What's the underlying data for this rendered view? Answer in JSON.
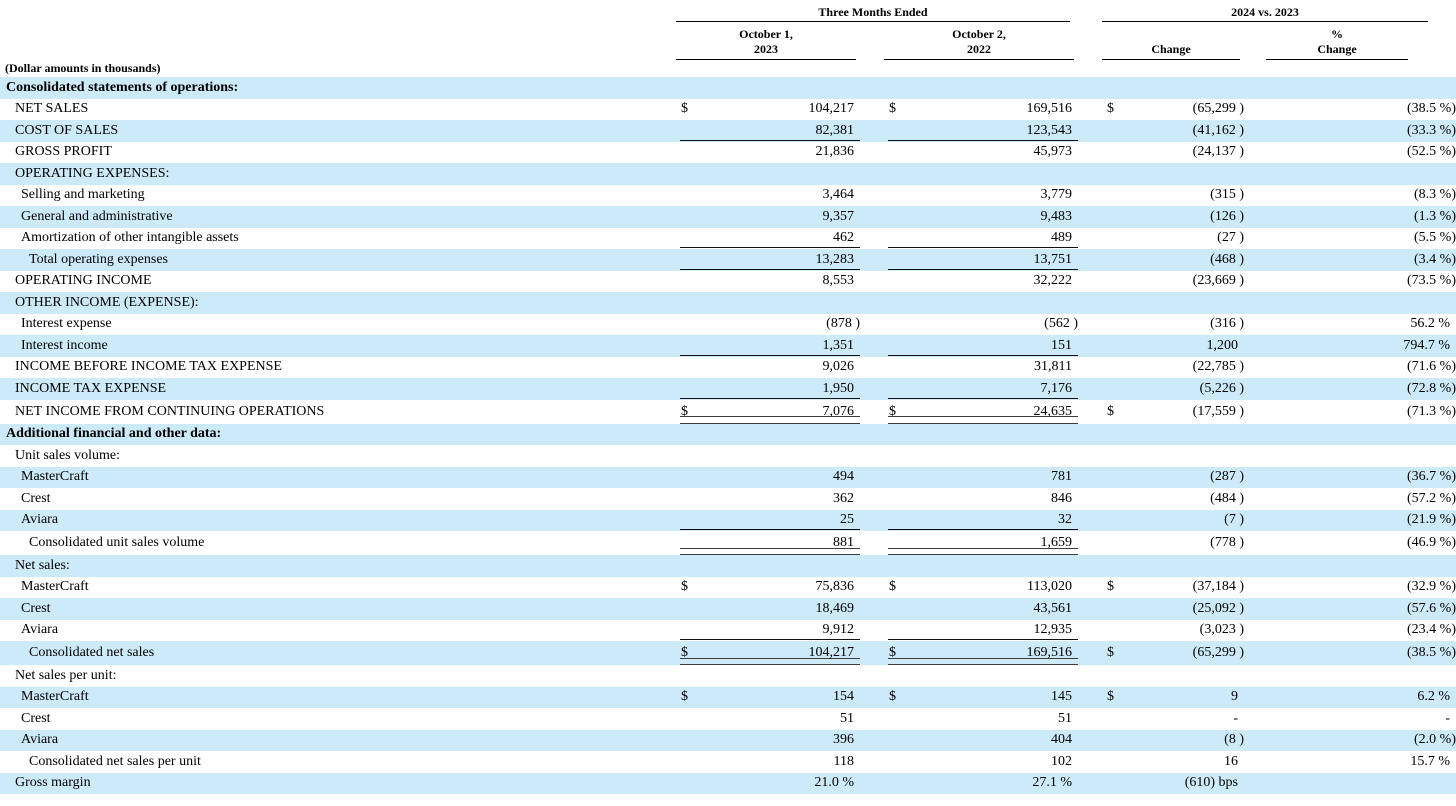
{
  "table": {
    "note": "(Dollar amounts in thousands)",
    "colors": {
      "row_highlight": "#cdeaf8",
      "rule": "#111111"
    },
    "header": {
      "group_left": "Three Months Ended",
      "group_right": "2024 vs. 2023",
      "col1_line1": "October 1,",
      "col1_line2": "2023",
      "col2_line1": "October 2,",
      "col2_line2": "2022",
      "col3_line1": "Change",
      "col4_line1": "%",
      "col4_line2": "Change"
    },
    "rows": [
      {
        "label": "Consolidated statements of operations:",
        "indent": 0,
        "bold": true,
        "cells": [
          "",
          "",
          "",
          "",
          "",
          "",
          ""
        ],
        "rule": null
      },
      {
        "label": "NET SALES",
        "indent": 1,
        "bold": false,
        "cells": [
          "$",
          "104,217",
          "$",
          "169,516",
          "$",
          "(65,299 )",
          "(38.5 %)"
        ],
        "rule": null
      },
      {
        "label": "COST OF SALES",
        "indent": 1,
        "bold": false,
        "cells": [
          "",
          "82,381",
          "",
          "123,543",
          "",
          "(41,162 )",
          "(33.3 %)"
        ],
        "rule": "single"
      },
      {
        "label": "GROSS PROFIT",
        "indent": 1,
        "bold": false,
        "cells": [
          "",
          "21,836",
          "",
          "45,973",
          "",
          "(24,137 )",
          "(52.5 %)"
        ],
        "rule": null
      },
      {
        "label": "OPERATING EXPENSES:",
        "indent": 1,
        "bold": false,
        "cells": [
          "",
          "",
          "",
          "",
          "",
          "",
          ""
        ],
        "rule": null
      },
      {
        "label": "Selling and marketing",
        "indent": 2,
        "bold": false,
        "cells": [
          "",
          "3,464",
          "",
          "3,779",
          "",
          "(315 )",
          "(8.3 %)"
        ],
        "rule": null
      },
      {
        "label": "General and administrative",
        "indent": 2,
        "bold": false,
        "cells": [
          "",
          "9,357",
          "",
          "9,483",
          "",
          "(126 )",
          "(1.3 %)"
        ],
        "rule": null
      },
      {
        "label": "Amortization of other intangible assets",
        "indent": 2,
        "bold": false,
        "cells": [
          "",
          "462",
          "",
          "489",
          "",
          "(27 )",
          "(5.5 %)"
        ],
        "rule": "single"
      },
      {
        "label": "Total operating expenses",
        "indent": 3,
        "bold": false,
        "cells": [
          "",
          "13,283",
          "",
          "13,751",
          "",
          "(468 )",
          "(3.4 %)"
        ],
        "rule": "single"
      },
      {
        "label": "OPERATING INCOME",
        "indent": 1,
        "bold": false,
        "cells": [
          "",
          "8,553",
          "",
          "32,222",
          "",
          "(23,669 )",
          "(73.5 %)"
        ],
        "rule": null
      },
      {
        "label": "OTHER INCOME (EXPENSE):",
        "indent": 1,
        "bold": false,
        "cells": [
          "",
          "",
          "",
          "",
          "",
          "",
          ""
        ],
        "rule": null
      },
      {
        "label": "Interest expense",
        "indent": 2,
        "bold": false,
        "cells": [
          "",
          "(878 )",
          "",
          "(562 )",
          "",
          "(316 )",
          "56.2 %"
        ],
        "rule": null
      },
      {
        "label": "Interest income",
        "indent": 2,
        "bold": false,
        "cells": [
          "",
          "1,351",
          "",
          "151",
          "",
          "1,200",
          "794.7 %"
        ],
        "rule": "single"
      },
      {
        "label": "INCOME BEFORE INCOME TAX EXPENSE",
        "indent": 1,
        "bold": false,
        "cells": [
          "",
          "9,026",
          "",
          "31,811",
          "",
          "(22,785 )",
          "(71.6 %)"
        ],
        "rule": null
      },
      {
        "label": "INCOME TAX EXPENSE",
        "indent": 1,
        "bold": false,
        "cells": [
          "",
          "1,950",
          "",
          "7,176",
          "",
          "(5,226 )",
          "(72.8 %)"
        ],
        "rule": "single"
      },
      {
        "label": "NET INCOME FROM CONTINUING OPERATIONS",
        "indent": 1,
        "bold": false,
        "cells": [
          "$",
          "7,076",
          "$",
          "24,635",
          "$",
          "(17,559 )",
          "(71.3 %)"
        ],
        "rule": "double"
      },
      {
        "label": "Additional financial and other data:",
        "indent": 0,
        "bold": true,
        "cells": [
          "",
          "",
          "",
          "",
          "",
          "",
          ""
        ],
        "rule": null
      },
      {
        "label": "Unit sales volume:",
        "indent": 1,
        "bold": false,
        "cells": [
          "",
          "",
          "",
          "",
          "",
          "",
          ""
        ],
        "rule": null
      },
      {
        "label": "MasterCraft",
        "indent": 2,
        "bold": false,
        "cells": [
          "",
          "494",
          "",
          "781",
          "",
          "(287 )",
          "(36.7 %)"
        ],
        "rule": null
      },
      {
        "label": "Crest",
        "indent": 2,
        "bold": false,
        "cells": [
          "",
          "362",
          "",
          "846",
          "",
          "(484 )",
          "(57.2 %)"
        ],
        "rule": null
      },
      {
        "label": "Aviara",
        "indent": 2,
        "bold": false,
        "cells": [
          "",
          "25",
          "",
          "32",
          "",
          "(7 )",
          "(21.9 %)"
        ],
        "rule": "single"
      },
      {
        "label": "Consolidated unit sales volume",
        "indent": 3,
        "bold": false,
        "cells": [
          "",
          "881",
          "",
          "1,659",
          "",
          "(778 )",
          "(46.9 %)"
        ],
        "rule": "double"
      },
      {
        "label": "Net sales:",
        "indent": 1,
        "bold": false,
        "cells": [
          "",
          "",
          "",
          "",
          "",
          "",
          ""
        ],
        "rule": null
      },
      {
        "label": "MasterCraft",
        "indent": 2,
        "bold": false,
        "cells": [
          "$",
          "75,836",
          "$",
          "113,020",
          "$",
          "(37,184 )",
          "(32.9 %)"
        ],
        "rule": null
      },
      {
        "label": "Crest",
        "indent": 2,
        "bold": false,
        "cells": [
          "",
          "18,469",
          "",
          "43,561",
          "",
          "(25,092 )",
          "(57.6 %)"
        ],
        "rule": null
      },
      {
        "label": "Aviara",
        "indent": 2,
        "bold": false,
        "cells": [
          "",
          "9,912",
          "",
          "12,935",
          "",
          "(3,023 )",
          "(23.4 %)"
        ],
        "rule": "single"
      },
      {
        "label": "Consolidated net sales",
        "indent": 3,
        "bold": false,
        "cells": [
          "$",
          "104,217",
          "$",
          "169,516",
          "$",
          "(65,299 )",
          "(38.5 %)"
        ],
        "rule": "double"
      },
      {
        "label": "Net sales per unit:",
        "indent": 1,
        "bold": false,
        "cells": [
          "",
          "",
          "",
          "",
          "",
          "",
          ""
        ],
        "rule": null
      },
      {
        "label": "MasterCraft",
        "indent": 2,
        "bold": false,
        "cells": [
          "$",
          "154",
          "$",
          "145",
          "$",
          "9",
          "6.2 %"
        ],
        "rule": null
      },
      {
        "label": "Crest",
        "indent": 2,
        "bold": false,
        "cells": [
          "",
          "51",
          "",
          "51",
          "",
          "-",
          "-"
        ],
        "rule": null
      },
      {
        "label": "Aviara",
        "indent": 2,
        "bold": false,
        "cells": [
          "",
          "396",
          "",
          "404",
          "",
          "(8 )",
          "(2.0 %)"
        ],
        "rule": null
      },
      {
        "label": "Consolidated net sales per unit",
        "indent": 3,
        "bold": false,
        "cells": [
          "",
          "118",
          "",
          "102",
          "",
          "16",
          "15.7 %"
        ],
        "rule": null
      },
      {
        "label": "Gross margin",
        "indent": 1,
        "bold": false,
        "cells": [
          "",
          "21.0 %",
          "",
          "27.1 %",
          "",
          "(610) bps",
          ""
        ],
        "rule": null
      }
    ]
  }
}
